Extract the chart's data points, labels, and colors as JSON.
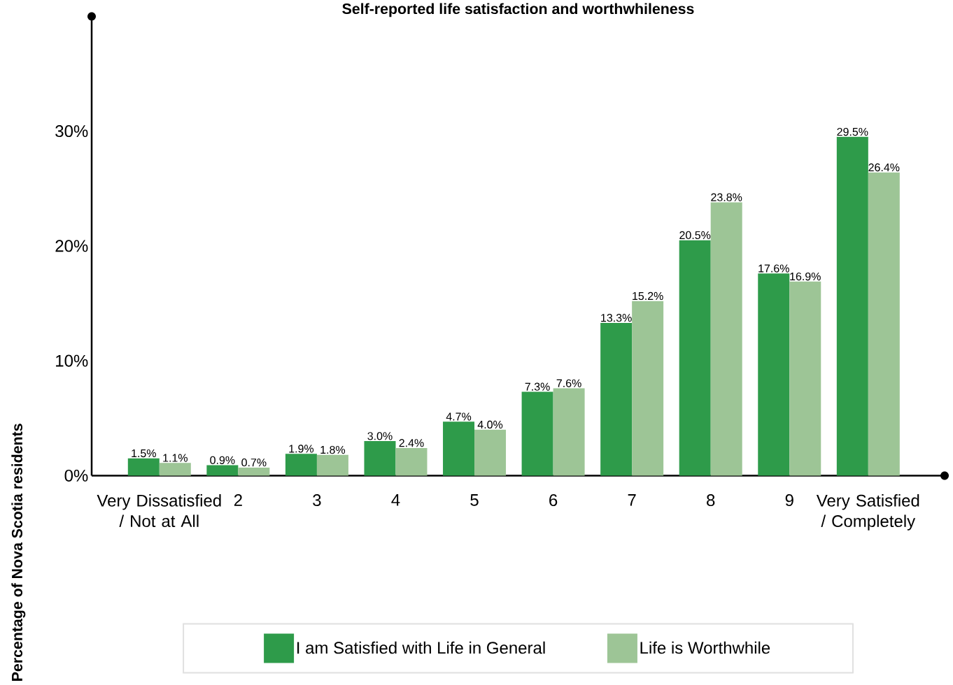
{
  "chart_data": {
    "type": "bar",
    "title": "Self-reported life satisfaction and worthwhileness",
    "ylabel": "Percentage of Nova Scotia residents",
    "categories": [
      "Very Dissatisfied / Not at All",
      "2",
      "3",
      "4",
      "5",
      "6",
      "7",
      "8",
      "9",
      "Very Satisfied / Completely"
    ],
    "series": [
      {
        "name": "I am Satisfied with Life in General",
        "color": "#2e9b4a",
        "values": [
          1.5,
          0.9,
          1.9,
          3.0,
          4.7,
          7.3,
          13.3,
          20.5,
          17.6,
          29.5
        ],
        "value_labels": [
          "1.5%",
          "0.9%",
          "1.9%",
          "3.0%",
          "4.7%",
          "7.3%",
          "13.3%",
          "20.5%",
          "17.6%",
          "29.5%"
        ]
      },
      {
        "name": "Life is Worthwhile",
        "color": "#9dc596",
        "values": [
          1.1,
          0.7,
          1.8,
          2.4,
          4.0,
          7.6,
          15.2,
          23.8,
          16.9,
          26.4
        ],
        "value_labels": [
          "1.1%",
          "0.7%",
          "1.8%",
          "2.4%",
          "4.0%",
          "7.6%",
          "15.2%",
          "23.8%",
          "16.9%",
          "26.4%"
        ]
      }
    ],
    "ylim": [
      0,
      40
    ],
    "yticks": [
      {
        "value": 0,
        "label": "0%"
      },
      {
        "value": 10,
        "label": "10%"
      },
      {
        "value": 20,
        "label": "20%"
      },
      {
        "value": 30,
        "label": "30%"
      }
    ],
    "legend": "bottom"
  }
}
